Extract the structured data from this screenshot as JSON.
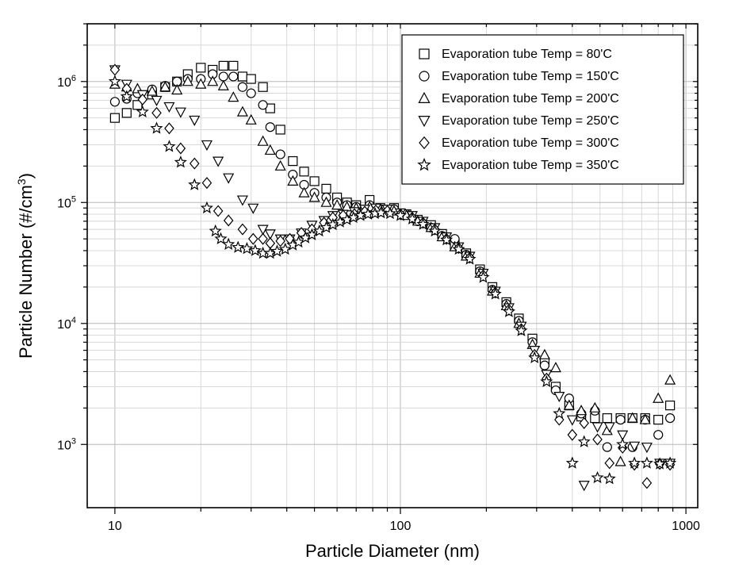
{
  "chart": {
    "type": "scatter",
    "background_color": "#ffffff",
    "grid_color_major": "#b8b8b8",
    "grid_color_minor": "#d8d8d8",
    "frame_color": "#000000",
    "marker_stroke": "#000000",
    "marker_fill": "#ffffff",
    "marker_size": 11,
    "axis_label_fontsize": 22,
    "tick_label_fontsize": 16,
    "legend_fontsize": 16,
    "xlabel": "Particle Diameter (nm)",
    "ylabel": "Particle Number (#/cm³)",
    "ylabel_raw": "Particle Number (#/cm",
    "ylabel_sup": "3",
    "ylabel_close": ")",
    "x_scale": "log",
    "y_scale": "log",
    "xlim": [
      8,
      1100
    ],
    "ylim": [
      300,
      3000000
    ],
    "x_major_ticks": [
      10,
      100,
      1000
    ],
    "x_tick_labels": [
      "10",
      "100",
      "1000"
    ],
    "y_major_ticks": [
      1000,
      10000,
      100000,
      1000000
    ],
    "y_tick_labels": [
      "10^3",
      "10^4",
      "10^5",
      "10^6"
    ],
    "legend": {
      "position": "top-right",
      "items": [
        {
          "marker": "square",
          "label": "Evaporation tube Temp =   80'C"
        },
        {
          "marker": "circle",
          "label": "Evaporation tube Temp = 150'C"
        },
        {
          "marker": "triangle-up",
          "label": "Evaporation tube Temp = 200'C"
        },
        {
          "marker": "triangle-down",
          "label": "Evaporation tube Temp = 250'C"
        },
        {
          "marker": "diamond",
          "label": "Evaporation tube Temp = 300'C"
        },
        {
          "marker": "star",
          "label": "Evaporation tube Temp = 350'C"
        }
      ]
    },
    "series": [
      {
        "name": "80C",
        "marker": "square",
        "data": [
          [
            10,
            500000
          ],
          [
            11,
            550000
          ],
          [
            12,
            640000
          ],
          [
            13.5,
            780000
          ],
          [
            15,
            900000
          ],
          [
            16.5,
            1000000
          ],
          [
            18,
            1150000
          ],
          [
            20,
            1300000
          ],
          [
            22,
            1250000
          ],
          [
            24,
            1350000
          ],
          [
            26,
            1350000
          ],
          [
            28,
            1100000
          ],
          [
            30,
            1050000
          ],
          [
            33,
            900000
          ],
          [
            35,
            600000
          ],
          [
            38,
            400000
          ],
          [
            42,
            220000
          ],
          [
            46,
            180000
          ],
          [
            50,
            150000
          ],
          [
            55,
            130000
          ],
          [
            60,
            110000
          ],
          [
            65,
            100000
          ],
          [
            70,
            95000
          ],
          [
            78,
            105000
          ],
          [
            85,
            90000
          ],
          [
            95,
            90000
          ],
          [
            105,
            80000
          ],
          [
            115,
            72000
          ],
          [
            128,
            65000
          ],
          [
            140,
            55000
          ],
          [
            155,
            45000
          ],
          [
            170,
            38000
          ],
          [
            190,
            28000
          ],
          [
            210,
            20000
          ],
          [
            235,
            15000
          ],
          [
            260,
            11000
          ],
          [
            290,
            7500
          ],
          [
            320,
            4800
          ],
          [
            350,
            3000
          ],
          [
            390,
            2100
          ],
          [
            430,
            1700
          ],
          [
            480,
            1650
          ],
          [
            530,
            1650
          ],
          [
            590,
            1650
          ],
          [
            650,
            1650
          ],
          [
            720,
            1650
          ],
          [
            800,
            1600
          ],
          [
            880,
            2100
          ]
        ]
      },
      {
        "name": "150C",
        "marker": "circle",
        "data": [
          [
            10,
            680000
          ],
          [
            11,
            720000
          ],
          [
            12,
            800000
          ],
          [
            13.5,
            860000
          ],
          [
            15,
            920000
          ],
          [
            16.5,
            1000000
          ],
          [
            18,
            1050000
          ],
          [
            20,
            1050000
          ],
          [
            22,
            1150000
          ],
          [
            24,
            1100000
          ],
          [
            26,
            1100000
          ],
          [
            28,
            900000
          ],
          [
            30,
            800000
          ],
          [
            33,
            640000
          ],
          [
            35,
            420000
          ],
          [
            38,
            250000
          ],
          [
            42,
            170000
          ],
          [
            46,
            140000
          ],
          [
            50,
            120000
          ],
          [
            55,
            110000
          ],
          [
            60,
            100000
          ],
          [
            65,
            95000
          ],
          [
            70,
            92000
          ],
          [
            78,
            95000
          ],
          [
            85,
            88000
          ],
          [
            95,
            88000
          ],
          [
            105,
            80000
          ],
          [
            115,
            70000
          ],
          [
            128,
            62000
          ],
          [
            140,
            53000
          ],
          [
            155,
            50000
          ],
          [
            170,
            37000
          ],
          [
            190,
            27000
          ],
          [
            210,
            19000
          ],
          [
            235,
            14500
          ],
          [
            260,
            10500
          ],
          [
            290,
            7000
          ],
          [
            320,
            4500
          ],
          [
            350,
            2800
          ],
          [
            390,
            2400
          ],
          [
            430,
            1800
          ],
          [
            480,
            1900
          ],
          [
            530,
            950
          ],
          [
            590,
            1600
          ],
          [
            650,
            950
          ],
          [
            720,
            1600
          ],
          [
            800,
            1200
          ],
          [
            880,
            1650
          ]
        ]
      },
      {
        "name": "200C",
        "marker": "triangle-up",
        "data": [
          [
            10,
            950000
          ],
          [
            11,
            900000
          ],
          [
            12,
            870000
          ],
          [
            13.5,
            830000
          ],
          [
            15,
            900000
          ],
          [
            16.5,
            850000
          ],
          [
            18,
            1000000
          ],
          [
            20,
            950000
          ],
          [
            22,
            1000000
          ],
          [
            24,
            920000
          ],
          [
            26,
            740000
          ],
          [
            28,
            560000
          ],
          [
            30,
            480000
          ],
          [
            33,
            320000
          ],
          [
            35,
            270000
          ],
          [
            38,
            200000
          ],
          [
            42,
            150000
          ],
          [
            46,
            120000
          ],
          [
            50,
            110000
          ],
          [
            55,
            100000
          ],
          [
            60,
            95000
          ],
          [
            65,
            92000
          ],
          [
            70,
            90000
          ],
          [
            78,
            92000
          ],
          [
            85,
            88000
          ],
          [
            95,
            85000
          ],
          [
            105,
            78000
          ],
          [
            115,
            70000
          ],
          [
            128,
            62000
          ],
          [
            140,
            52000
          ],
          [
            155,
            43000
          ],
          [
            170,
            36000
          ],
          [
            190,
            26000
          ],
          [
            210,
            18500
          ],
          [
            235,
            14000
          ],
          [
            260,
            10000
          ],
          [
            290,
            6700
          ],
          [
            320,
            5500
          ],
          [
            350,
            4300
          ],
          [
            390,
            2100
          ],
          [
            430,
            1900
          ],
          [
            480,
            2000
          ],
          [
            530,
            1300
          ],
          [
            590,
            720
          ],
          [
            650,
            1650
          ],
          [
            720,
            1600
          ],
          [
            800,
            2400
          ],
          [
            880,
            3400
          ]
        ]
      },
      {
        "name": "250C",
        "marker": "triangle-down",
        "data": [
          [
            10,
            1250000
          ],
          [
            11,
            950000
          ],
          [
            12.5,
            780000
          ],
          [
            14,
            700000
          ],
          [
            15.5,
            620000
          ],
          [
            17,
            560000
          ],
          [
            19,
            480000
          ],
          [
            21,
            300000
          ],
          [
            23,
            220000
          ],
          [
            25,
            160000
          ],
          [
            28,
            105000
          ],
          [
            30.5,
            90000
          ],
          [
            33,
            60000
          ],
          [
            35,
            55000
          ],
          [
            38,
            50000
          ],
          [
            41,
            50000
          ],
          [
            45,
            56000
          ],
          [
            49,
            65000
          ],
          [
            54,
            71000
          ],
          [
            58,
            78000
          ],
          [
            63,
            80000
          ],
          [
            69,
            84000
          ],
          [
            75,
            88000
          ],
          [
            82,
            90000
          ],
          [
            90,
            88000
          ],
          [
            100,
            82000
          ],
          [
            110,
            78000
          ],
          [
            120,
            70000
          ],
          [
            132,
            62000
          ],
          [
            145,
            52000
          ],
          [
            160,
            43000
          ],
          [
            175,
            36000
          ],
          [
            195,
            26000
          ],
          [
            215,
            18500
          ],
          [
            240,
            13500
          ],
          [
            265,
            9500
          ],
          [
            295,
            6000
          ],
          [
            325,
            3800
          ],
          [
            360,
            2500
          ],
          [
            400,
            1600
          ],
          [
            440,
            460
          ],
          [
            490,
            1400
          ],
          [
            540,
            1400
          ],
          [
            600,
            1200
          ],
          [
            660,
            970
          ],
          [
            730,
            950
          ],
          [
            810,
            700
          ],
          [
            880,
            700
          ]
        ]
      },
      {
        "name": "300C",
        "marker": "diamond",
        "data": [
          [
            10,
            1250000
          ],
          [
            11,
            870000
          ],
          [
            12.5,
            710000
          ],
          [
            14,
            550000
          ],
          [
            15.5,
            410000
          ],
          [
            17,
            280000
          ],
          [
            19,
            210000
          ],
          [
            21,
            145000
          ],
          [
            23,
            85000
          ],
          [
            25,
            71000
          ],
          [
            28,
            60000
          ],
          [
            30.5,
            50000
          ],
          [
            33,
            50000
          ],
          [
            35,
            46000
          ],
          [
            38,
            48000
          ],
          [
            41,
            50000
          ],
          [
            45,
            56000
          ],
          [
            49,
            60000
          ],
          [
            54,
            68000
          ],
          [
            58,
            75000
          ],
          [
            63,
            78000
          ],
          [
            69,
            80000
          ],
          [
            75,
            84000
          ],
          [
            82,
            86000
          ],
          [
            90,
            85000
          ],
          [
            100,
            80000
          ],
          [
            110,
            75000
          ],
          [
            120,
            68000
          ],
          [
            132,
            60000
          ],
          [
            145,
            50000
          ],
          [
            160,
            42000
          ],
          [
            175,
            35000
          ],
          [
            195,
            25000
          ],
          [
            215,
            18000
          ],
          [
            240,
            13000
          ],
          [
            265,
            9000
          ],
          [
            295,
            5500
          ],
          [
            325,
            3500
          ],
          [
            360,
            1600
          ],
          [
            400,
            1200
          ],
          [
            440,
            1500
          ],
          [
            490,
            1100
          ],
          [
            540,
            700
          ],
          [
            600,
            940
          ],
          [
            660,
            680
          ],
          [
            730,
            480
          ],
          [
            810,
            690
          ],
          [
            880,
            680
          ]
        ]
      },
      {
        "name": "350C",
        "marker": "star",
        "data": [
          [
            10,
            1000000
          ],
          [
            11,
            750000
          ],
          [
            12.5,
            560000
          ],
          [
            14,
            410000
          ],
          [
            15.5,
            290000
          ],
          [
            17,
            215000
          ],
          [
            19,
            140000
          ],
          [
            21,
            90000
          ],
          [
            22.5,
            58000
          ],
          [
            23.5,
            50000
          ],
          [
            25,
            45000
          ],
          [
            27,
            42500
          ],
          [
            29,
            41500
          ],
          [
            31,
            40000
          ],
          [
            33,
            38000
          ],
          [
            35,
            38000
          ],
          [
            37,
            39500
          ],
          [
            39.5,
            41000
          ],
          [
            42,
            44500
          ],
          [
            44,
            47000
          ],
          [
            46.5,
            51000
          ],
          [
            49,
            54000
          ],
          [
            52,
            58000
          ],
          [
            55,
            62000
          ],
          [
            58,
            65500
          ],
          [
            61.5,
            69000
          ],
          [
            65,
            72000
          ],
          [
            68.5,
            75000
          ],
          [
            72.5,
            78000
          ],
          [
            77,
            80000
          ],
          [
            81.5,
            81000
          ],
          [
            85.5,
            82000
          ],
          [
            92,
            81000
          ],
          [
            100,
            78000
          ],
          [
            110,
            73000
          ],
          [
            120,
            66000
          ],
          [
            132,
            58000
          ],
          [
            145,
            49000
          ],
          [
            160,
            41000
          ],
          [
            175,
            34000
          ],
          [
            195,
            24000
          ],
          [
            215,
            17500
          ],
          [
            240,
            12500
          ],
          [
            265,
            8700
          ],
          [
            295,
            5200
          ],
          [
            325,
            3300
          ],
          [
            360,
            1800
          ],
          [
            400,
            700
          ],
          [
            440,
            1050
          ],
          [
            490,
            530
          ],
          [
            540,
            520
          ],
          [
            600,
            1000
          ],
          [
            660,
            700
          ],
          [
            730,
            700
          ],
          [
            810,
            690
          ],
          [
            880,
            700
          ]
        ]
      }
    ]
  }
}
